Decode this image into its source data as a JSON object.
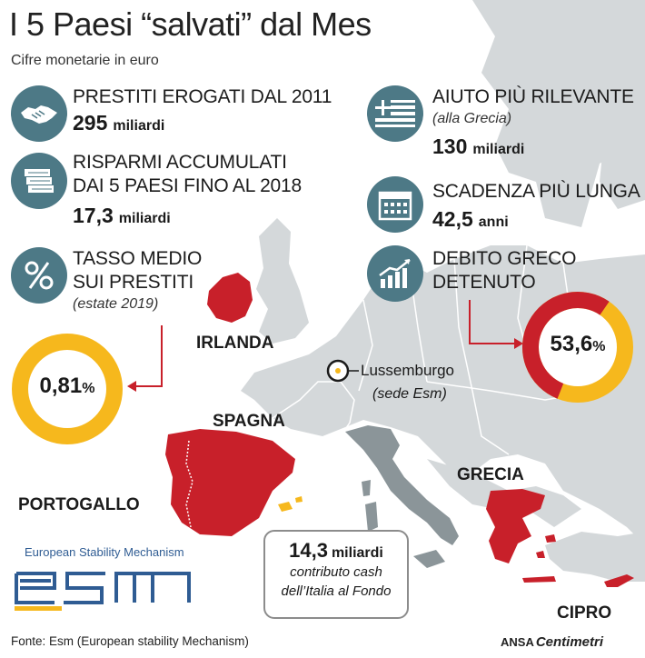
{
  "title": "I 5 Paesi “salvati” dal Mes",
  "subtitle": "Cifre monetarie in euro",
  "blocks": {
    "loans": {
      "icon": "handshake-icon",
      "heading": "PRESTITI EROGATI DAL 2011",
      "value": "295",
      "unit": "miliardi"
    },
    "savings": {
      "icon": "money-stack-icon",
      "heading_line1": "RISPARMI ACCUMULATI",
      "heading_line2": "DAI 5 PAESI FINO AL 2018",
      "value": "17,3",
      "unit": "miliardi"
    },
    "rate": {
      "icon": "percent-icon",
      "heading_line1": "TASSO MEDIO",
      "heading_line2": "SUI PRESTITI",
      "note": "(estate 2019)",
      "ring_value": "0,81",
      "ring_unit": "%",
      "ring_share": 0.0081
    },
    "aid": {
      "icon": "greek-flag-icon",
      "heading": "AIUTO PIÙ RILEVANTE",
      "note": "(alla Grecia)",
      "value": "130",
      "unit": "miliardi"
    },
    "term": {
      "icon": "calendar-icon",
      "heading": "SCADENZA PIÙ LUNGA",
      "value": "42,5",
      "unit": "anni"
    },
    "greek_debt": {
      "icon": "rising-chart-icon",
      "heading_line1": "DEBITO GRECO",
      "heading_line2": "DETENUTO",
      "ring_value": "53,6",
      "ring_unit": "%",
      "ring_share": 0.536
    }
  },
  "countries": {
    "ireland": "IRLANDA",
    "spain": "SPAGNA",
    "portugal": "PORTOGALLO",
    "greece": "GRECIA",
    "cyprus": "CIPRO"
  },
  "luxembourg": {
    "label": "Lussemburgo",
    "note": "(sede Esm)"
  },
  "italy_box": {
    "value": "14,3",
    "unit": "miliardi",
    "line1": "contributo cash",
    "line2": "dell’Italia al Fondo"
  },
  "esm": {
    "caption": "European Stability Mechanism",
    "logo_text": "esm"
  },
  "footer": {
    "source": "Fonte: Esm (European stability Mechanism)",
    "agency": "ANSA",
    "agency_brand": "Centimetri"
  },
  "colors": {
    "icon_teal": "#4d7986",
    "red": "#c8202a",
    "yellow": "#f6b81d",
    "map_gray": "#cfd3d5",
    "italy_gray": "#8b9599",
    "esm_blue": "#2f5c93"
  }
}
